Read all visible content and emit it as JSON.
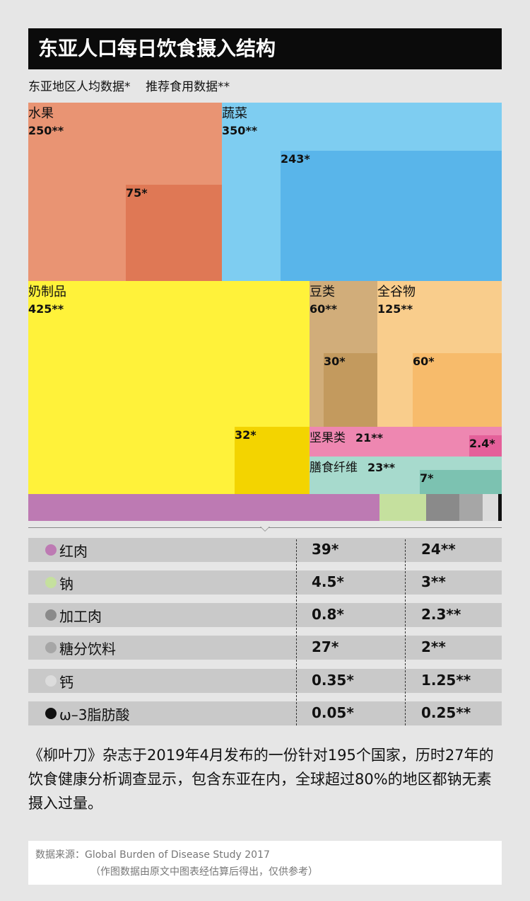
{
  "title": "东亚人口每日饮食摄入结构",
  "subtitle": "东亚地区人均数据*    推荐食用数据**",
  "chart_data": {
    "type": "treemap",
    "title": "东亚人口每日饮食摄入结构",
    "legend": [
      "东亚地区人均数据*",
      "推荐食用数据**"
    ],
    "categories": [
      {
        "name": "水果",
        "recommended": "250**",
        "actual": "75*",
        "color": "#e99473",
        "inner_color": "#df7855"
      },
      {
        "name": "蔬菜",
        "recommended": "350**",
        "actual": "243*",
        "color": "#7ecdf1",
        "inner_color": "#59b5ea"
      },
      {
        "name": "奶制品",
        "recommended": "425**",
        "actual": "32*",
        "color": "#fff23a",
        "inner_color": "#f3d400"
      },
      {
        "name": "豆类",
        "recommended": "60**",
        "actual": "30*",
        "color": "#d1ad7a",
        "inner_color": "#c39a5e"
      },
      {
        "name": "全谷物",
        "recommended": "125**",
        "actual": "60*",
        "color": "#f9cd8c",
        "inner_color": "#f7bb6b"
      },
      {
        "name": "坚果类",
        "recommended": "21**",
        "actual": "2.4*",
        "color": "#ee87b1",
        "inner_color": "#e4609a"
      },
      {
        "name": "膳食纤维",
        "recommended": "23**",
        "actual": "7*",
        "color": "#a7dacd",
        "inner_color": "#7cc2b1"
      }
    ],
    "strip_colors": [
      "#bd7ab3",
      "#c5e09e",
      "#8a8a8a",
      "#a6a6a6",
      "#dcdcdc",
      "#111111"
    ]
  },
  "table": {
    "rows": [
      {
        "name": "红肉",
        "actual": "39*",
        "recommended": "24**",
        "dot_color": "#bd7ab3"
      },
      {
        "name": "钠",
        "actual": "4.5*",
        "recommended": "3**",
        "dot_color": "#c5e09e"
      },
      {
        "name": "加工肉",
        "actual": "0.8*",
        "recommended": "2.3**",
        "dot_color": "#8a8a8a"
      },
      {
        "name": "糖分饮料",
        "actual": "27*",
        "recommended": "2**",
        "dot_color": "#a6a6a6"
      },
      {
        "name": "钙",
        "actual": "0.35*",
        "recommended": "1.25**",
        "dot_color": "#dcdcdc"
      },
      {
        "name": "ω–3脂肪酸",
        "actual": "0.05*",
        "recommended": "0.25**",
        "dot_color": "#111111"
      }
    ]
  },
  "note": "《柳叶刀》杂志于2019年4月发布的一份针对195个国家，历时27年的饮食健康分析调查显示，包含东亚在内，全球超过80%的地区都钠无素摄入过量。",
  "source": {
    "line1": "数据来源：Global Burden of Disease Study 2017",
    "line2": "（作图数据由原文中图表经估算后得出，仅供参考）"
  }
}
